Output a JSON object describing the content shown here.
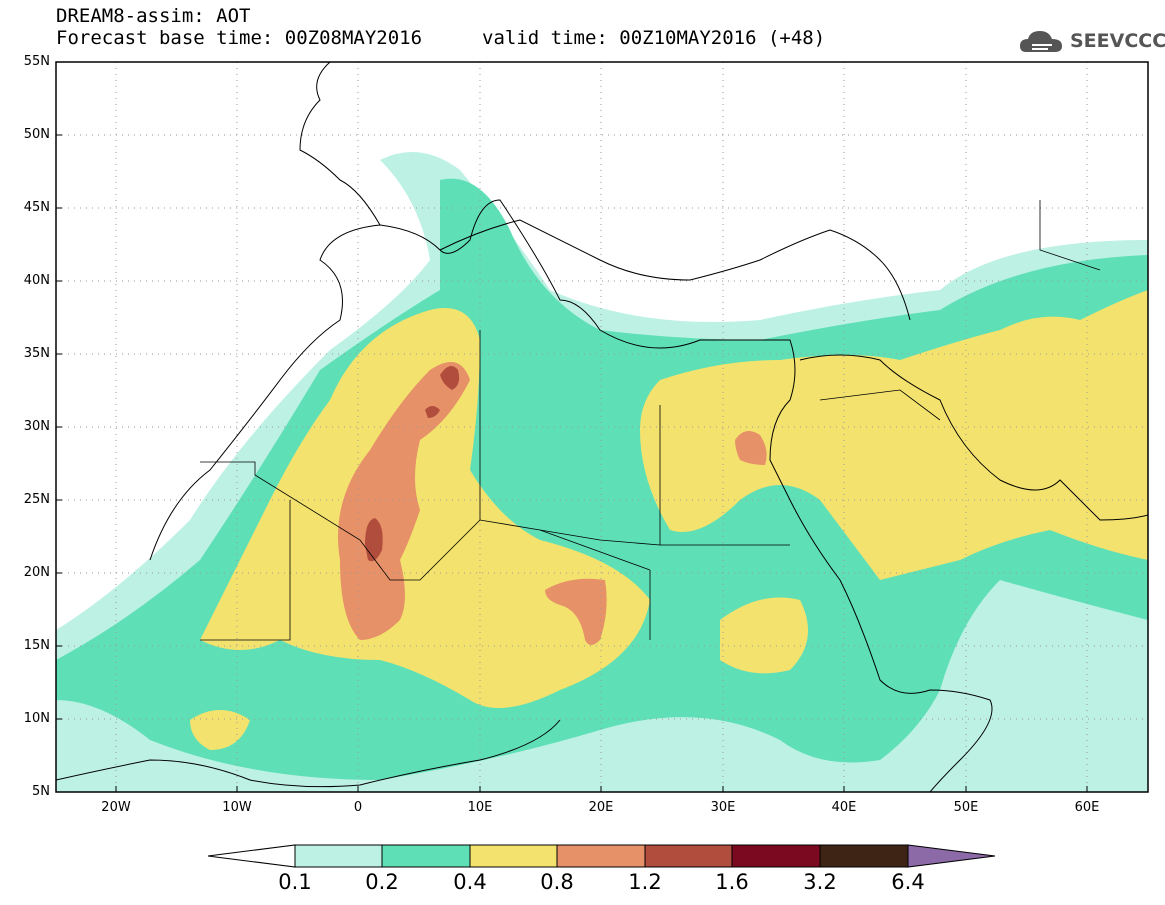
{
  "header": {
    "title": "DREAM8-assim: AOT",
    "base_time": "Forecast base time: 00Z08MAY2016",
    "valid_time": "valid time: 00Z10MAY2016 (+48)",
    "logo_text": "SEEVCCC"
  },
  "map": {
    "lat_ticks": [
      "55N",
      "50N",
      "45N",
      "40N",
      "35N",
      "30N",
      "25N",
      "20N",
      "15N",
      "10N",
      "5N"
    ],
    "lon_ticks": [
      "20W",
      "10W",
      "0",
      "10E",
      "20E",
      "30E",
      "40E",
      "50E",
      "60E"
    ],
    "extent": {
      "lon": [
        -25,
        65
      ],
      "lat": [
        5,
        55
      ]
    }
  },
  "colorbar": {
    "levels": [
      "0.1",
      "0.2",
      "0.4",
      "0.8",
      "1.2",
      "1.6",
      "3.2",
      "6.4"
    ],
    "colors": [
      "#ffffff",
      "#bdf1e4",
      "#5fdfb6",
      "#f3e36e",
      "#e69167",
      "#b14d3c",
      "#7b0a21",
      "#3d2414",
      "#8c6aa8"
    ]
  }
}
